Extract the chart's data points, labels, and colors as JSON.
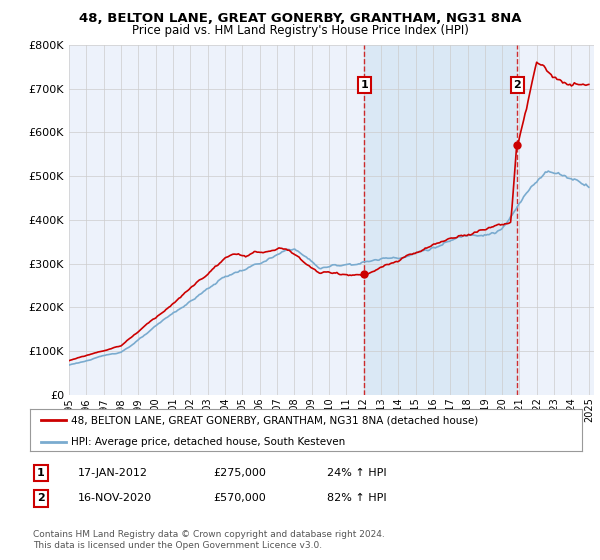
{
  "title1": "48, BELTON LANE, GREAT GONERBY, GRANTHAM, NG31 8NA",
  "title2": "Price paid vs. HM Land Registry's House Price Index (HPI)",
  "ylim": [
    0,
    800000
  ],
  "yticks": [
    0,
    100000,
    200000,
    300000,
    400000,
    500000,
    600000,
    700000,
    800000
  ],
  "xlim_start": 1995.0,
  "xlim_end": 2025.3,
  "sale1_x": 2012.05,
  "sale1_y": 275000,
  "sale1_label": "1",
  "sale1_date": "17-JAN-2012",
  "sale1_price": "£275,000",
  "sale1_hpi": "24% ↑ HPI",
  "sale2_x": 2020.88,
  "sale2_y": 570000,
  "sale2_label": "2",
  "sale2_date": "16-NOV-2020",
  "sale2_price": "£570,000",
  "sale2_hpi": "82% ↑ HPI",
  "legend_line1": "48, BELTON LANE, GREAT GONERBY, GRANTHAM, NG31 8NA (detached house)",
  "legend_line2": "HPI: Average price, detached house, South Kesteven",
  "footer1": "Contains HM Land Registry data © Crown copyright and database right 2024.",
  "footer2": "This data is licensed under the Open Government Licence v3.0.",
  "property_color": "#cc0000",
  "hpi_color": "#7aabcf",
  "shade_color": "#dae8f5",
  "background_plot": "#edf2fb",
  "background_fig": "#ffffff",
  "grid_color": "#cccccc"
}
